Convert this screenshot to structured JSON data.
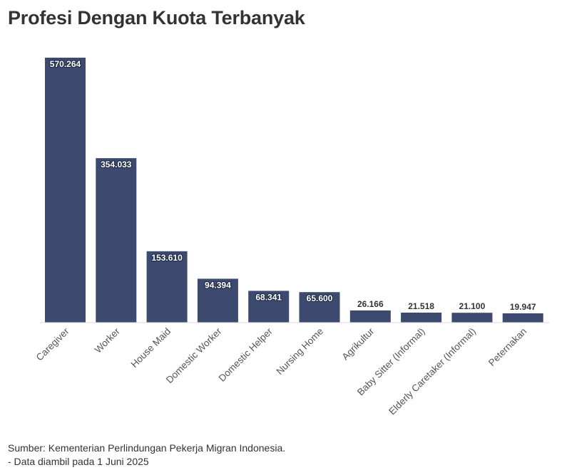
{
  "title": "Profesi Dengan Kuota Terbanyak",
  "footer": {
    "source": "Sumber: Kementerian Perlindungan Pekerja Migran Indonesia.",
    "note": "- Data diambil pada 1 Juni 2025"
  },
  "chart_data": {
    "type": "bar",
    "categories": [
      "Caregiver",
      "Worker",
      "House Maid",
      "Domestic Worker",
      "Domestic Helper",
      "Nursing Home",
      "Agrikultur",
      "Baby Sitter (Informal)",
      "Elderly Caretaker (Informal)",
      "Peternakan"
    ],
    "values": [
      570264,
      354033,
      153610,
      94394,
      68341,
      65600,
      26166,
      21518,
      21100,
      19947
    ],
    "value_labels": [
      "570.264",
      "354.033",
      "153.610",
      "94.394",
      "68.341",
      "65.600",
      "26.166",
      "21.518",
      "21.100",
      "19.947"
    ],
    "ylim": [
      0,
      570264
    ],
    "grid": false,
    "bar_color": "#3b4a6e",
    "label_inside_color": "#ffffff",
    "label_outside_color": "#333333"
  }
}
